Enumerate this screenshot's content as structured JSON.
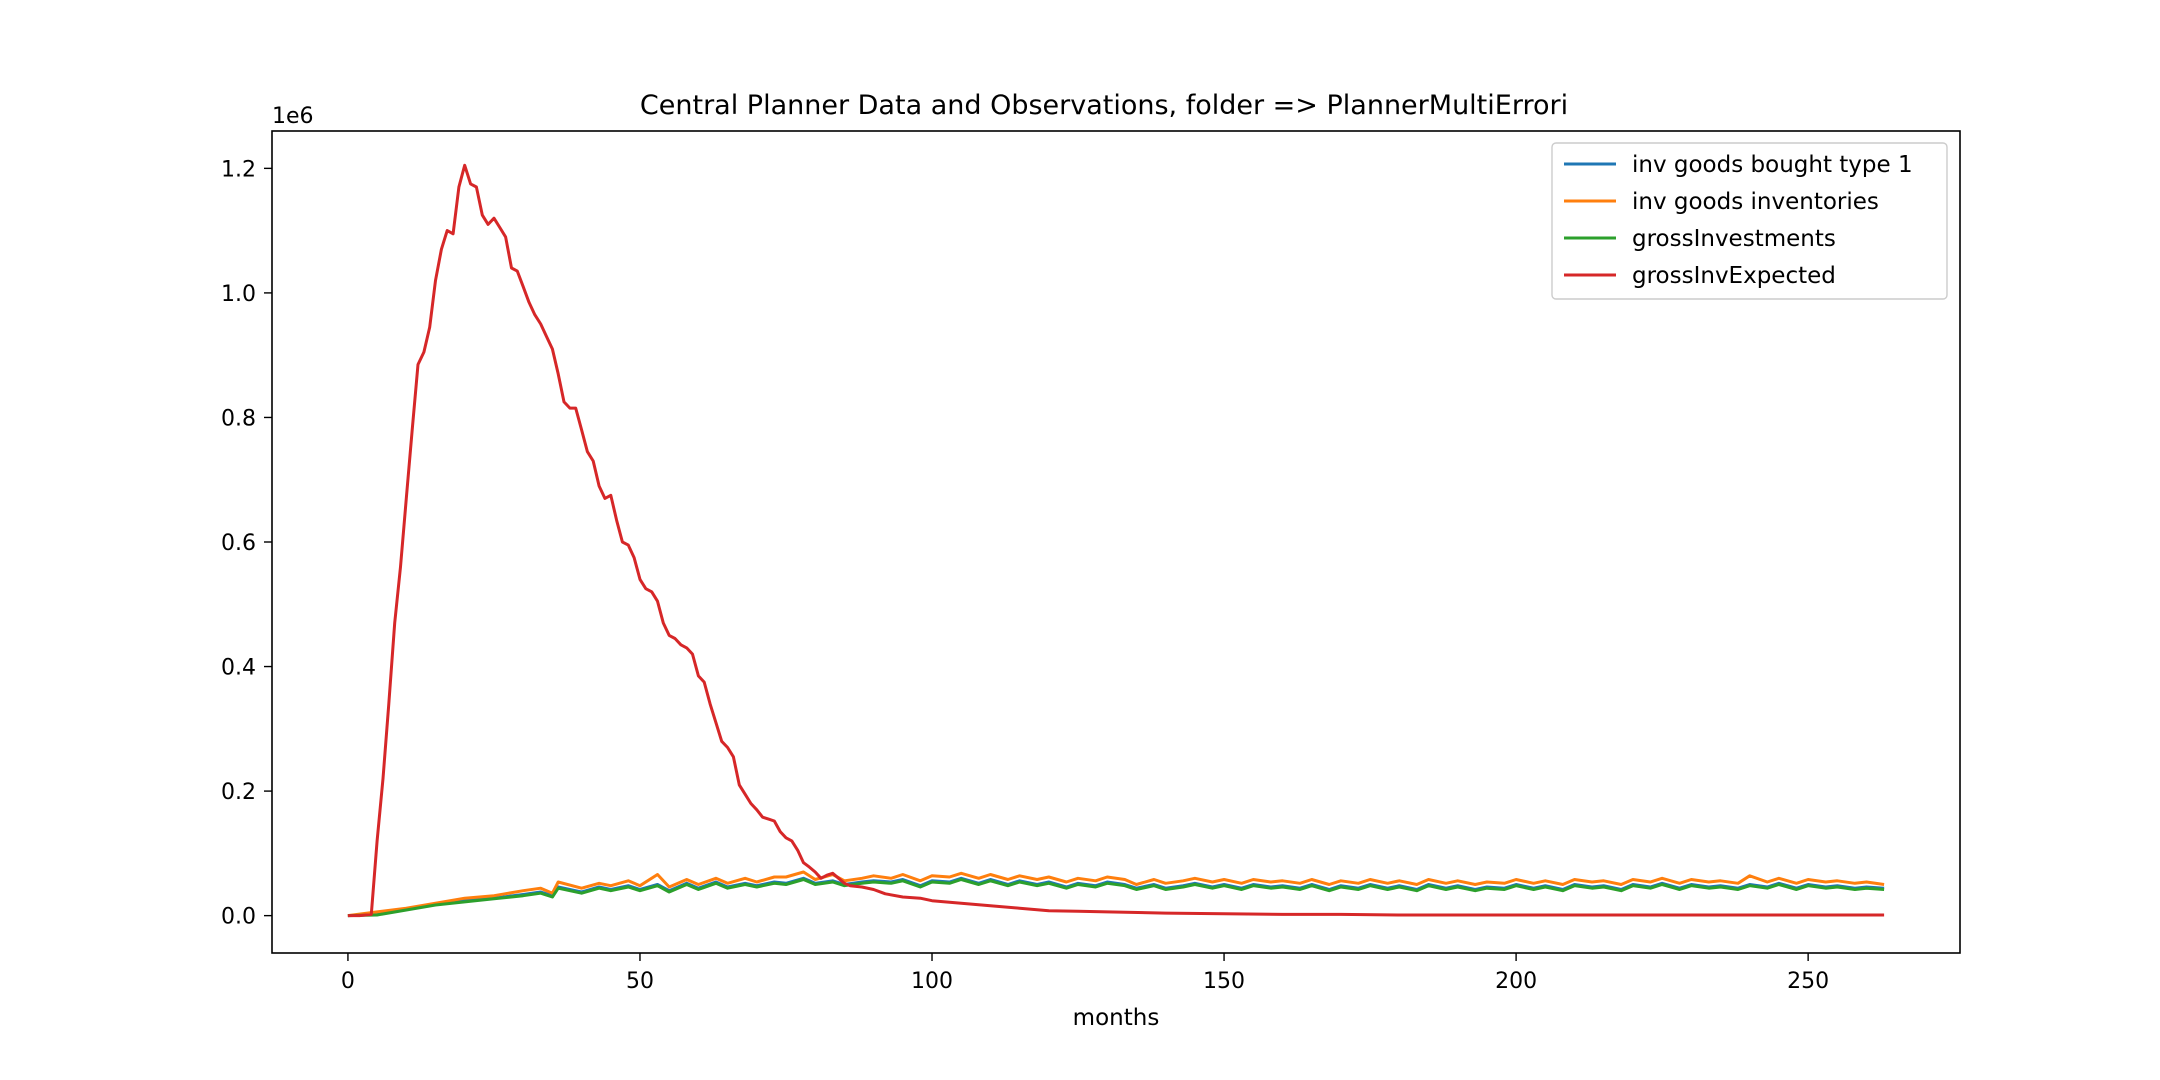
{
  "chart_data": {
    "type": "line",
    "title": "Central Planner Data and Observations, folder => PlannerMultiErrori",
    "xlabel": "months",
    "ylabel": "",
    "y_offset_label": "1e6",
    "xlim": [
      -13,
      276
    ],
    "ylim": [
      -0.06,
      1.26
    ],
    "xticks": [
      0,
      50,
      100,
      150,
      200,
      250
    ],
    "xtick_labels": [
      "0",
      "50",
      "100",
      "150",
      "200",
      "250"
    ],
    "yticks": [
      0.0,
      0.2,
      0.4,
      0.6,
      0.8,
      1.0,
      1.2
    ],
    "ytick_labels": [
      "0.0",
      "0.2",
      "0.4",
      "0.6",
      "0.8",
      "1.0",
      "1.2"
    ],
    "grid": false,
    "legend_position": "upper-right",
    "series": [
      {
        "name": "inv goods bought type 1",
        "color": "#1f77b4",
        "x": [
          0,
          5,
          10,
          15,
          20,
          25,
          30,
          33,
          35,
          36,
          40,
          43,
          45,
          48,
          50,
          53,
          55,
          58,
          60,
          63,
          65,
          68,
          70,
          73,
          75,
          78,
          80,
          83,
          85,
          88,
          90,
          93,
          95,
          98,
          100,
          103,
          105,
          108,
          110,
          113,
          115,
          118,
          120,
          123,
          125,
          128,
          130,
          133,
          135,
          138,
          140,
          143,
          145,
          148,
          150,
          153,
          155,
          158,
          160,
          163,
          165,
          168,
          170,
          173,
          175,
          178,
          180,
          183,
          185,
          188,
          190,
          193,
          195,
          198,
          200,
          203,
          205,
          208,
          210,
          213,
          215,
          218,
          220,
          223,
          225,
          228,
          230,
          233,
          235,
          238,
          240,
          243,
          245,
          248,
          250,
          253,
          255,
          258,
          260,
          263
        ],
        "values": [
          0,
          0.002,
          0.01,
          0.018,
          0.024,
          0.028,
          0.034,
          0.038,
          0.032,
          0.046,
          0.038,
          0.046,
          0.042,
          0.048,
          0.042,
          0.05,
          0.04,
          0.052,
          0.044,
          0.054,
          0.046,
          0.052,
          0.048,
          0.054,
          0.052,
          0.06,
          0.052,
          0.056,
          0.05,
          0.054,
          0.056,
          0.054,
          0.058,
          0.048,
          0.056,
          0.054,
          0.06,
          0.052,
          0.058,
          0.05,
          0.056,
          0.05,
          0.054,
          0.046,
          0.052,
          0.048,
          0.054,
          0.05,
          0.044,
          0.05,
          0.044,
          0.048,
          0.052,
          0.046,
          0.05,
          0.044,
          0.05,
          0.046,
          0.048,
          0.044,
          0.05,
          0.042,
          0.048,
          0.044,
          0.05,
          0.044,
          0.048,
          0.042,
          0.05,
          0.044,
          0.048,
          0.042,
          0.046,
          0.044,
          0.05,
          0.044,
          0.048,
          0.042,
          0.05,
          0.046,
          0.048,
          0.042,
          0.05,
          0.046,
          0.052,
          0.044,
          0.05,
          0.046,
          0.048,
          0.044,
          0.05,
          0.046,
          0.052,
          0.044,
          0.05,
          0.046,
          0.048,
          0.044,
          0.046,
          0.044
        ]
      },
      {
        "name": "inv goods inventories",
        "color": "#ff7f0e",
        "x": [
          0,
          5,
          10,
          15,
          20,
          25,
          30,
          33,
          35,
          36,
          40,
          43,
          45,
          48,
          50,
          53,
          55,
          58,
          60,
          63,
          65,
          68,
          70,
          73,
          75,
          78,
          80,
          83,
          85,
          88,
          90,
          93,
          95,
          98,
          100,
          103,
          105,
          108,
          110,
          113,
          115,
          118,
          120,
          123,
          125,
          128,
          130,
          133,
          135,
          138,
          140,
          143,
          145,
          148,
          150,
          153,
          155,
          158,
          160,
          163,
          165,
          168,
          170,
          173,
          175,
          178,
          180,
          183,
          185,
          188,
          190,
          193,
          195,
          198,
          200,
          203,
          205,
          208,
          210,
          213,
          215,
          218,
          220,
          223,
          225,
          228,
          230,
          233,
          235,
          238,
          240,
          243,
          245,
          248,
          250,
          253,
          255,
          258,
          260,
          263
        ],
        "values": [
          0,
          0.006,
          0.012,
          0.02,
          0.028,
          0.032,
          0.04,
          0.044,
          0.036,
          0.054,
          0.044,
          0.052,
          0.048,
          0.056,
          0.048,
          0.066,
          0.046,
          0.058,
          0.05,
          0.06,
          0.052,
          0.06,
          0.054,
          0.062,
          0.062,
          0.07,
          0.058,
          0.066,
          0.056,
          0.06,
          0.064,
          0.06,
          0.066,
          0.056,
          0.064,
          0.062,
          0.068,
          0.06,
          0.066,
          0.058,
          0.064,
          0.058,
          0.062,
          0.054,
          0.06,
          0.056,
          0.062,
          0.058,
          0.05,
          0.058,
          0.052,
          0.056,
          0.06,
          0.054,
          0.058,
          0.052,
          0.058,
          0.054,
          0.056,
          0.052,
          0.058,
          0.05,
          0.056,
          0.052,
          0.058,
          0.052,
          0.056,
          0.05,
          0.058,
          0.052,
          0.056,
          0.05,
          0.054,
          0.052,
          0.058,
          0.052,
          0.056,
          0.05,
          0.058,
          0.054,
          0.056,
          0.05,
          0.058,
          0.054,
          0.06,
          0.052,
          0.058,
          0.054,
          0.056,
          0.052,
          0.064,
          0.054,
          0.06,
          0.052,
          0.058,
          0.054,
          0.056,
          0.052,
          0.054,
          0.05
        ]
      },
      {
        "name": "grossInvestments",
        "color": "#2ca02c",
        "x": [
          0,
          5,
          10,
          15,
          20,
          25,
          30,
          33,
          35,
          36,
          40,
          43,
          45,
          48,
          50,
          53,
          55,
          58,
          60,
          63,
          65,
          68,
          70,
          73,
          75,
          78,
          80,
          83,
          85,
          88,
          90,
          93,
          95,
          98,
          100,
          103,
          105,
          108,
          110,
          113,
          115,
          118,
          120,
          123,
          125,
          128,
          130,
          133,
          135,
          138,
          140,
          143,
          145,
          148,
          150,
          153,
          155,
          158,
          160,
          163,
          165,
          168,
          170,
          173,
          175,
          178,
          180,
          183,
          185,
          188,
          190,
          193,
          195,
          198,
          200,
          203,
          205,
          208,
          210,
          213,
          215,
          218,
          220,
          223,
          225,
          228,
          230,
          233,
          235,
          238,
          240,
          243,
          245,
          248,
          250,
          253,
          255,
          258,
          260,
          263
        ],
        "values": [
          0,
          0.001,
          0.009,
          0.017,
          0.022,
          0.027,
          0.032,
          0.036,
          0.03,
          0.044,
          0.036,
          0.044,
          0.04,
          0.046,
          0.04,
          0.048,
          0.038,
          0.05,
          0.042,
          0.052,
          0.044,
          0.05,
          0.046,
          0.052,
          0.05,
          0.058,
          0.05,
          0.054,
          0.048,
          0.052,
          0.054,
          0.052,
          0.056,
          0.046,
          0.054,
          0.052,
          0.058,
          0.05,
          0.056,
          0.048,
          0.054,
          0.048,
          0.052,
          0.044,
          0.05,
          0.046,
          0.052,
          0.048,
          0.042,
          0.048,
          0.042,
          0.046,
          0.05,
          0.044,
          0.048,
          0.042,
          0.048,
          0.044,
          0.046,
          0.042,
          0.048,
          0.04,
          0.046,
          0.042,
          0.048,
          0.042,
          0.046,
          0.04,
          0.048,
          0.042,
          0.046,
          0.04,
          0.044,
          0.042,
          0.048,
          0.042,
          0.046,
          0.04,
          0.048,
          0.044,
          0.046,
          0.04,
          0.048,
          0.044,
          0.05,
          0.042,
          0.048,
          0.044,
          0.046,
          0.042,
          0.048,
          0.044,
          0.05,
          0.042,
          0.048,
          0.044,
          0.046,
          0.042,
          0.044,
          0.042
        ]
      },
      {
        "name": "grossInvExpected",
        "color": "#d62728",
        "x": [
          0,
          2,
          4,
          5,
          6,
          7,
          8,
          9,
          10,
          11,
          12,
          13,
          14,
          15,
          16,
          17,
          18,
          19,
          20,
          21,
          22,
          23,
          24,
          25,
          26,
          27,
          28,
          29,
          30,
          31,
          32,
          33,
          34,
          35,
          36,
          37,
          38,
          39,
          40,
          41,
          42,
          43,
          44,
          45,
          46,
          47,
          48,
          49,
          50,
          51,
          52,
          53,
          54,
          55,
          56,
          57,
          58,
          59,
          60,
          61,
          62,
          63,
          64,
          65,
          66,
          67,
          68,
          69,
          70,
          71,
          72,
          73,
          74,
          75,
          76,
          77,
          78,
          79,
          80,
          81,
          82,
          83,
          84,
          85,
          86,
          88,
          90,
          92,
          95,
          98,
          100,
          105,
          110,
          115,
          120,
          125,
          130,
          140,
          150,
          160,
          170,
          180,
          200,
          220,
          240,
          263
        ],
        "values": [
          0,
          0,
          0.002,
          0.12,
          0.22,
          0.34,
          0.47,
          0.56,
          0.67,
          0.78,
          0.885,
          0.905,
          0.945,
          1.02,
          1.07,
          1.1,
          1.095,
          1.17,
          1.205,
          1.175,
          1.17,
          1.125,
          1.11,
          1.12,
          1.105,
          1.09,
          1.04,
          1.035,
          1.01,
          0.985,
          0.965,
          0.95,
          0.93,
          0.91,
          0.87,
          0.825,
          0.815,
          0.815,
          0.78,
          0.745,
          0.73,
          0.69,
          0.67,
          0.675,
          0.635,
          0.6,
          0.595,
          0.575,
          0.54,
          0.525,
          0.52,
          0.505,
          0.47,
          0.45,
          0.445,
          0.435,
          0.43,
          0.42,
          0.385,
          0.375,
          0.34,
          0.31,
          0.28,
          0.27,
          0.255,
          0.21,
          0.195,
          0.18,
          0.17,
          0.158,
          0.155,
          0.152,
          0.135,
          0.125,
          0.12,
          0.105,
          0.085,
          0.078,
          0.07,
          0.06,
          0.065,
          0.068,
          0.06,
          0.052,
          0.048,
          0.046,
          0.042,
          0.035,
          0.03,
          0.028,
          0.024,
          0.02,
          0.016,
          0.012,
          0.008,
          0.007,
          0.006,
          0.004,
          0.003,
          0.002,
          0.002,
          0.001,
          0.001,
          0.001,
          0.001,
          0.001
        ]
      }
    ]
  }
}
